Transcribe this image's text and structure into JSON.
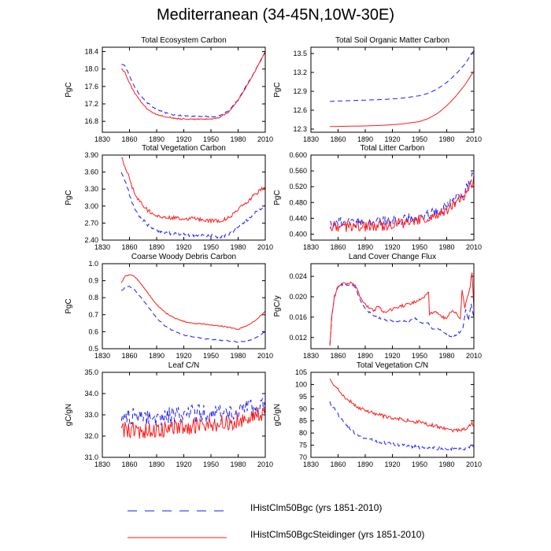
{
  "title": "Mediterranean (34-45N,10W-30E)",
  "series_styles": {
    "bgc": {
      "color": "#1a1aff",
      "dash": "6,4"
    },
    "steid": {
      "color": "#ff1a1a",
      "dash": ""
    }
  },
  "legend": [
    {
      "key": "bgc",
      "label": "IHistClm50Bgc (yrs 1851-2010)"
    },
    {
      "key": "steid",
      "label": "IHistClm50BgcSteidinger (yrs 1851-2010)"
    }
  ],
  "chart_data": [
    {
      "type": "line",
      "title": "Total Ecosystem Carbon",
      "xlabel": "",
      "ylabel": "PgC",
      "xlim": [
        1830,
        2010
      ],
      "xticks": [
        1830,
        1860,
        1890,
        1920,
        1950,
        1980,
        2010
      ],
      "ylim": [
        16.55,
        18.5
      ],
      "yticks": [
        16.8,
        17.2,
        17.6,
        18.0,
        18.4
      ],
      "ytick_labels": [
        "16.8",
        "17.2",
        "17.6",
        "18.0",
        "18.4"
      ],
      "series": [
        {
          "key": "bgc",
          "x": [
            1851,
            1855,
            1860,
            1865,
            1870,
            1875,
            1880,
            1885,
            1890,
            1900,
            1910,
            1920,
            1930,
            1940,
            1950,
            1960,
            1970,
            1980,
            1990,
            2000,
            2010
          ],
          "y": [
            18.12,
            18.08,
            17.85,
            17.62,
            17.45,
            17.32,
            17.22,
            17.14,
            17.08,
            16.99,
            16.95,
            16.93,
            16.92,
            16.91,
            16.9,
            16.93,
            17.05,
            17.3,
            17.65,
            18.0,
            18.4
          ],
          "noise": 0.015
        },
        {
          "key": "steid",
          "x": [
            1851,
            1855,
            1860,
            1865,
            1870,
            1875,
            1880,
            1885,
            1890,
            1900,
            1910,
            1920,
            1930,
            1940,
            1950,
            1960,
            1970,
            1980,
            1990,
            2000,
            2010
          ],
          "y": [
            18.0,
            17.92,
            17.68,
            17.47,
            17.32,
            17.18,
            17.08,
            17.0,
            16.96,
            16.9,
            16.87,
            16.85,
            16.85,
            16.85,
            16.85,
            16.89,
            17.02,
            17.28,
            17.63,
            18.0,
            18.4
          ],
          "noise": 0.015
        }
      ]
    },
    {
      "type": "line",
      "title": "Total Soil Organic Matter Carbon",
      "xlabel": "",
      "ylabel": "PgC",
      "xlim": [
        1830,
        2010
      ],
      "xticks": [
        1830,
        1860,
        1890,
        1920,
        1950,
        1980,
        2010
      ],
      "ylim": [
        12.25,
        13.6
      ],
      "yticks": [
        12.3,
        12.6,
        12.9,
        13.2,
        13.5
      ],
      "ytick_labels": [
        "12.3",
        "12.6",
        "12.9",
        "13.2",
        "13.5"
      ],
      "series": [
        {
          "key": "bgc",
          "x": [
            1851,
            1870,
            1890,
            1910,
            1930,
            1950,
            1960,
            1970,
            1980,
            1990,
            2000,
            2010
          ],
          "y": [
            12.74,
            12.75,
            12.76,
            12.77,
            12.79,
            12.83,
            12.87,
            12.94,
            13.04,
            13.17,
            13.33,
            13.55
          ],
          "noise": 0
        },
        {
          "key": "steid",
          "x": [
            1851,
            1870,
            1890,
            1910,
            1930,
            1950,
            1960,
            1970,
            1980,
            1990,
            2000,
            2010
          ],
          "y": [
            12.34,
            12.345,
            12.35,
            12.36,
            12.38,
            12.42,
            12.47,
            12.55,
            12.67,
            12.82,
            13.0,
            13.22
          ],
          "noise": 0
        }
      ]
    },
    {
      "type": "line",
      "title": "Total Vegetation Carbon",
      "xlabel": "",
      "ylabel": "PgC",
      "xlim": [
        1830,
        2010
      ],
      "xticks": [
        1830,
        1860,
        1890,
        1920,
        1950,
        1980,
        2010
      ],
      "ylim": [
        2.4,
        3.9
      ],
      "yticks": [
        2.4,
        2.7,
        3.0,
        3.3,
        3.6,
        3.9
      ],
      "ytick_labels": [
        "2.40",
        "2.70",
        "3.00",
        "3.30",
        "3.60",
        "3.90"
      ],
      "series": [
        {
          "key": "bgc",
          "x": [
            1851,
            1855,
            1860,
            1865,
            1870,
            1880,
            1890,
            1900,
            1910,
            1920,
            1930,
            1940,
            1950,
            1960,
            1970,
            1980,
            1990,
            2000,
            2010
          ],
          "y": [
            3.6,
            3.45,
            3.2,
            2.98,
            2.84,
            2.67,
            2.58,
            2.53,
            2.51,
            2.5,
            2.49,
            2.48,
            2.47,
            2.46,
            2.5,
            2.62,
            2.75,
            2.9,
            3.02
          ],
          "noise": 0.03
        },
        {
          "key": "steid",
          "x": [
            1851,
            1855,
            1860,
            1865,
            1870,
            1880,
            1890,
            1900,
            1910,
            1920,
            1930,
            1940,
            1950,
            1960,
            1970,
            1980,
            1990,
            2000,
            2010
          ],
          "y": [
            3.85,
            3.72,
            3.48,
            3.25,
            3.1,
            2.93,
            2.84,
            2.8,
            2.79,
            2.78,
            2.78,
            2.76,
            2.74,
            2.74,
            2.79,
            2.93,
            3.07,
            3.22,
            3.34
          ],
          "noise": 0.035
        }
      ]
    },
    {
      "type": "line",
      "title": "Total Litter Carbon",
      "xlabel": "",
      "ylabel": "PgC",
      "xlim": [
        1830,
        2010
      ],
      "xticks": [
        1830,
        1860,
        1890,
        1920,
        1950,
        1980,
        2010
      ],
      "ylim": [
        0.385,
        0.6
      ],
      "yticks": [
        0.4,
        0.44,
        0.48,
        0.52,
        0.56,
        0.6
      ],
      "ytick_labels": [
        "0.400",
        "0.440",
        "0.480",
        "0.520",
        "0.560",
        "0.600"
      ],
      "series": [
        {
          "key": "bgc",
          "x": [
            1851,
            1880,
            1910,
            1940,
            1960,
            1980,
            2000,
            2010
          ],
          "y": [
            0.428,
            0.43,
            0.432,
            0.44,
            0.45,
            0.47,
            0.51,
            0.55
          ],
          "noise": 0.014
        },
        {
          "key": "steid",
          "x": [
            1851,
            1880,
            1910,
            1940,
            1960,
            1980,
            2000,
            2010
          ],
          "y": [
            0.418,
            0.42,
            0.422,
            0.43,
            0.44,
            0.46,
            0.5,
            0.54
          ],
          "noise": 0.014
        }
      ]
    },
    {
      "type": "line",
      "title": "Coarse Woody Debris Carbon",
      "xlabel": "",
      "ylabel": "PgC",
      "xlim": [
        1830,
        2010
      ],
      "xticks": [
        1830,
        1860,
        1890,
        1920,
        1950,
        1980,
        2010
      ],
      "ylim": [
        0.5,
        1.0
      ],
      "yticks": [
        0.5,
        0.6,
        0.7,
        0.8,
        0.9,
        1.0
      ],
      "ytick_labels": [
        "0.5",
        "0.6",
        "0.7",
        "0.8",
        "0.9",
        "1.0"
      ],
      "series": [
        {
          "key": "bgc",
          "x": [
            1851,
            1855,
            1860,
            1865,
            1870,
            1880,
            1890,
            1900,
            1910,
            1920,
            1930,
            1940,
            1950,
            1960,
            1970,
            1980,
            1990,
            2000,
            2010
          ],
          "y": [
            0.84,
            0.86,
            0.865,
            0.85,
            0.82,
            0.75,
            0.68,
            0.63,
            0.6,
            0.58,
            0.57,
            0.56,
            0.555,
            0.55,
            0.545,
            0.54,
            0.545,
            0.565,
            0.6
          ],
          "noise": 0.003
        },
        {
          "key": "steid",
          "x": [
            1851,
            1855,
            1860,
            1865,
            1870,
            1880,
            1890,
            1900,
            1910,
            1920,
            1930,
            1940,
            1950,
            1960,
            1970,
            1980,
            1990,
            2000,
            2010
          ],
          "y": [
            0.89,
            0.925,
            0.935,
            0.925,
            0.9,
            0.83,
            0.76,
            0.71,
            0.68,
            0.66,
            0.65,
            0.645,
            0.64,
            0.635,
            0.625,
            0.615,
            0.635,
            0.67,
            0.72
          ],
          "noise": 0.003
        }
      ]
    },
    {
      "type": "line",
      "title": "Land Cover Change Flux",
      "xlabel": "",
      "ylabel": "PgC/y",
      "xlim": [
        1830,
        2010
      ],
      "xticks": [
        1830,
        1860,
        1890,
        1920,
        1950,
        1980,
        2010
      ],
      "ylim": [
        0.0098,
        0.0265
      ],
      "yticks": [
        0.012,
        0.016,
        0.02,
        0.024
      ],
      "ytick_labels": [
        "0.012",
        "0.016",
        "0.020",
        "0.024"
      ],
      "series": [
        {
          "key": "bgc",
          "x": [
            1851,
            1853,
            1856,
            1860,
            1865,
            1870,
            1875,
            1878,
            1880,
            1885,
            1890,
            1900,
            1910,
            1920,
            1930,
            1940,
            1945,
            1950,
            1955,
            1960,
            1962,
            1965,
            1970,
            1975,
            1980,
            1985,
            1990,
            1995,
            1998,
            2001,
            2004,
            2007,
            2010
          ],
          "y": [
            0.0105,
            0.016,
            0.02,
            0.0222,
            0.0225,
            0.0224,
            0.0223,
            0.0222,
            0.0215,
            0.019,
            0.0176,
            0.0163,
            0.0155,
            0.0152,
            0.0152,
            0.0153,
            0.0158,
            0.0152,
            0.0148,
            0.0147,
            0.0138,
            0.0138,
            0.0137,
            0.0133,
            0.0126,
            0.0122,
            0.0125,
            0.0132,
            0.0138,
            0.0175,
            0.0155,
            0.0185,
            0.0158
          ],
          "noise": 0.0002
        },
        {
          "key": "steid",
          "x": [
            1851,
            1853,
            1856,
            1860,
            1865,
            1870,
            1875,
            1878,
            1880,
            1885,
            1890,
            1900,
            1905,
            1910,
            1920,
            1930,
            1940,
            1950,
            1955,
            1958,
            1960,
            1961,
            1965,
            1970,
            1975,
            1980,
            1985,
            1990,
            1995,
            1997,
            2000,
            2003,
            2006,
            2008,
            2010
          ],
          "y": [
            0.0105,
            0.016,
            0.02,
            0.0222,
            0.0225,
            0.0226,
            0.0226,
            0.0224,
            0.0218,
            0.0197,
            0.0184,
            0.0173,
            0.0183,
            0.0168,
            0.0176,
            0.0182,
            0.0186,
            0.0194,
            0.0198,
            0.0207,
            0.0207,
            0.0165,
            0.017,
            0.0168,
            0.016,
            0.0157,
            0.0172,
            0.0168,
            0.0156,
            0.0214,
            0.0178,
            0.0198,
            0.0222,
            0.0248,
            0.0175
          ],
          "noise": 0.0003
        }
      ]
    },
    {
      "type": "line",
      "title": "Leaf C/N",
      "xlabel": "",
      "ylabel": "gC/gN",
      "xlim": [
        1830,
        2010
      ],
      "xticks": [
        1830,
        1860,
        1890,
        1920,
        1950,
        1980,
        2010
      ],
      "ylim": [
        31.0,
        35.0
      ],
      "yticks": [
        31.0,
        32.0,
        33.0,
        34.0,
        35.0
      ],
      "ytick_labels": [
        "31.0",
        "32.0",
        "33.0",
        "34.0",
        "35.0"
      ],
      "series": [
        {
          "key": "bgc",
          "x": [
            1851,
            1880,
            1910,
            1940,
            1970,
            2000,
            2010
          ],
          "y": [
            32.95,
            32.9,
            32.95,
            33.05,
            33.15,
            33.3,
            33.4
          ],
          "noise": 0.45
        },
        {
          "key": "steid",
          "x": [
            1851,
            1880,
            1910,
            1940,
            1970,
            2000,
            2010
          ],
          "y": [
            32.3,
            32.25,
            32.35,
            32.5,
            32.65,
            32.9,
            33.1
          ],
          "noise": 0.4
        }
      ]
    },
    {
      "type": "line",
      "title": "Total Vegetation C/N",
      "xlabel": "",
      "ylabel": "gC/gN",
      "xlim": [
        1830,
        2010
      ],
      "xticks": [
        1830,
        1860,
        1890,
        1920,
        1950,
        1980,
        2010
      ],
      "ylim": [
        70,
        105
      ],
      "yticks": [
        70,
        75,
        80,
        85,
        90,
        95,
        100,
        105
      ],
      "ytick_labels": [
        "70",
        "75",
        "80",
        "85",
        "90",
        "95",
        "100",
        "105"
      ],
      "series": [
        {
          "key": "bgc",
          "x": [
            1851,
            1855,
            1860,
            1870,
            1880,
            1890,
            1900,
            1910,
            1920,
            1930,
            1940,
            1950,
            1960,
            1970,
            1980,
            1990,
            2000,
            2010
          ],
          "y": [
            92.5,
            90.5,
            87.5,
            82.5,
            79.5,
            77.8,
            76.8,
            76.0,
            75.5,
            75.0,
            74.6,
            74.2,
            73.9,
            73.6,
            73.4,
            73.3,
            73.6,
            74.8
          ],
          "noise": 0.7
        },
        {
          "key": "steid",
          "x": [
            1851,
            1855,
            1860,
            1870,
            1880,
            1890,
            1900,
            1910,
            1920,
            1930,
            1940,
            1950,
            1960,
            1970,
            1980,
            1990,
            2000,
            2010
          ],
          "y": [
            101.5,
            100.0,
            98.0,
            94.0,
            91.2,
            89.2,
            88.0,
            87.0,
            86.2,
            85.6,
            85.0,
            84.4,
            83.6,
            82.8,
            81.8,
            81.0,
            81.8,
            84.0
          ],
          "noise": 0.8
        }
      ]
    }
  ]
}
